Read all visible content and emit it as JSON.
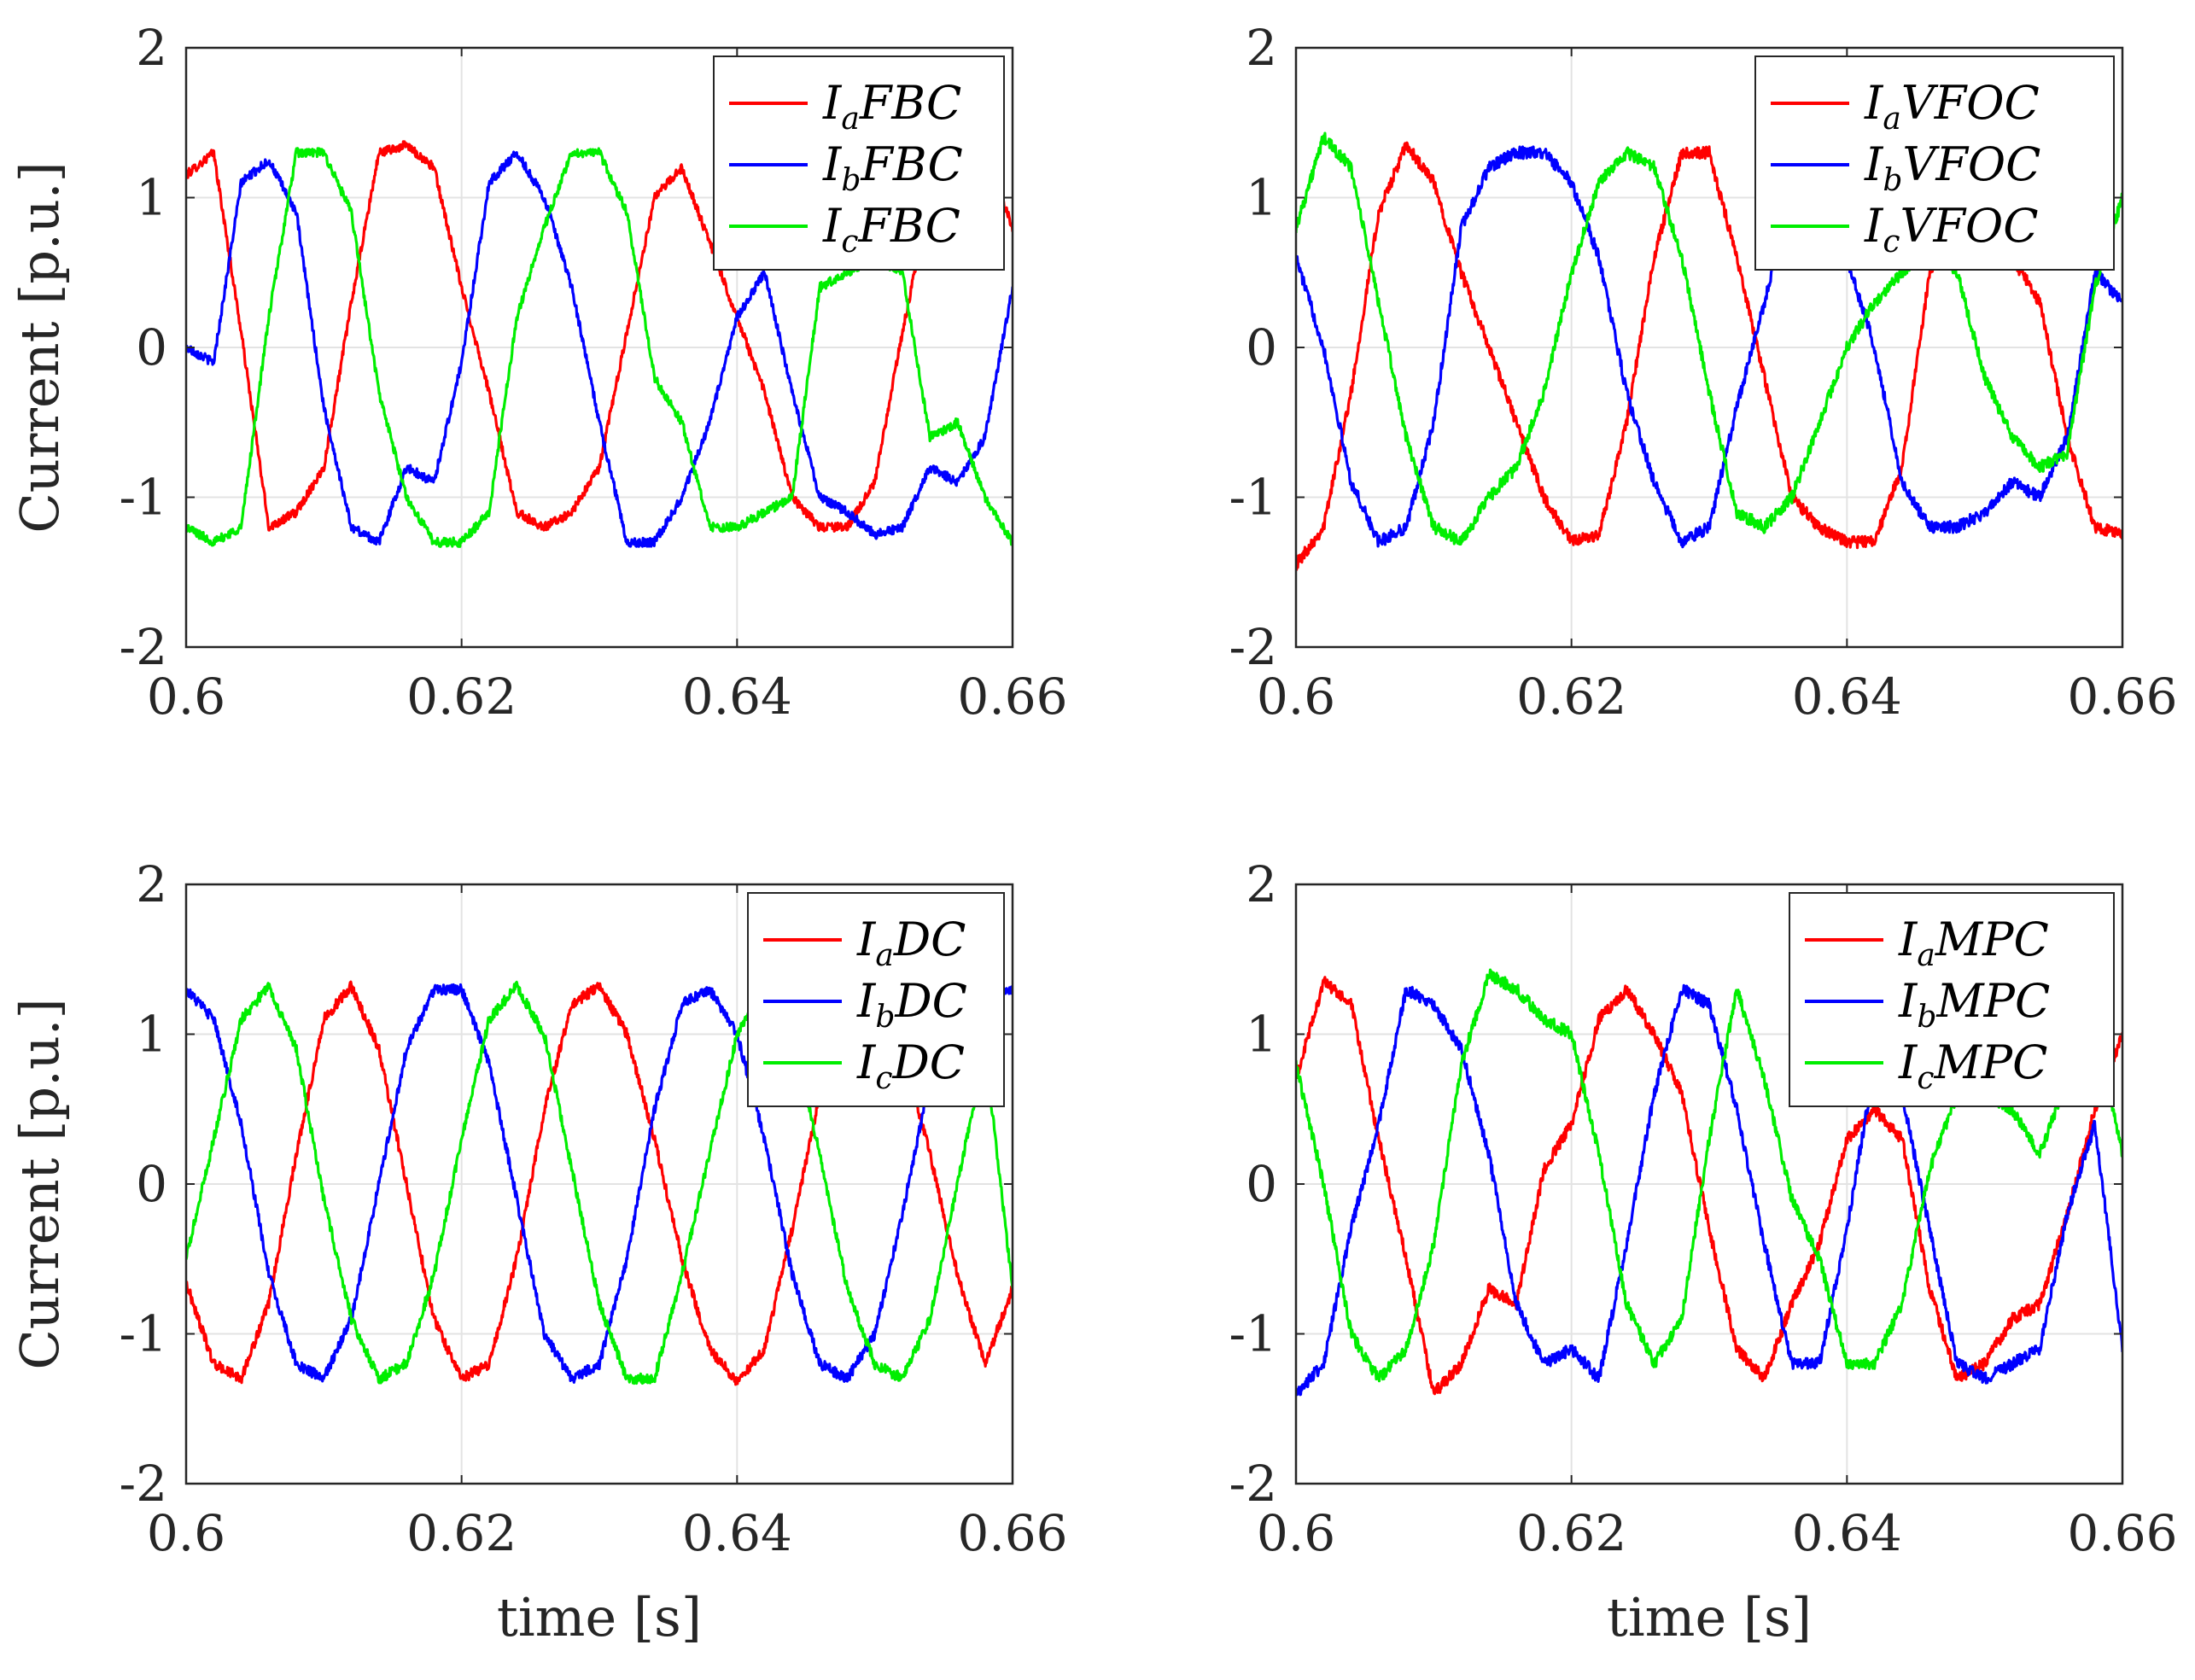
{
  "chart_data": [
    {
      "type": "line",
      "ylabel": "Current [p.u.]",
      "xlabel": "",
      "xlim": [
        0.6,
        0.66
      ],
      "ylim": [
        -2,
        2
      ],
      "xticks": [
        "0.6",
        "0.62",
        "0.64",
        "0.66"
      ],
      "yticks": [
        "2",
        "1",
        "0",
        "-1",
        "-2"
      ],
      "grid": true,
      "legend_position": "top-right",
      "series": [
        {
          "name": "IaFBC",
          "label_main": "I",
          "label_sub": "a",
          "label_rest": "FBC",
          "color": "#ff0000",
          "amplitude": 1.3,
          "phase_deg": 60,
          "noise": 0.03,
          "x": [
            0.6,
            0.602,
            0.604,
            0.606,
            0.608,
            0.61,
            0.612,
            0.614,
            0.616,
            0.618,
            0.62,
            0.622,
            0.624,
            0.626,
            0.628,
            0.63,
            0.632,
            0.634,
            0.636,
            0.638,
            0.64,
            0.642,
            0.644,
            0.646,
            0.648,
            0.65,
            0.652,
            0.654,
            0.656,
            0.658,
            0.66
          ],
          "y": [
            1.15,
            1.3,
            0.1,
            -1.2,
            -1.1,
            -0.8,
            0.3,
            1.3,
            1.35,
            1.2,
            0.4,
            -0.3,
            -1.1,
            -1.2,
            -1.1,
            -0.8,
            0.1,
            1.0,
            1.2,
            0.7,
            0.2,
            -0.3,
            -1.0,
            -1.2,
            -1.2,
            -0.9,
            0.1,
            1.0,
            1.2,
            1.3,
            0.8
          ]
        },
        {
          "name": "IbFBC",
          "label_main": "I",
          "label_sub": "b",
          "label_rest": "FBC",
          "color": "#0000ff",
          "amplitude": 1.3,
          "phase_deg": -60,
          "noise": 0.03,
          "x": [
            0.6,
            0.602,
            0.604,
            0.606,
            0.608,
            0.61,
            0.612,
            0.614,
            0.616,
            0.618,
            0.62,
            0.622,
            0.624,
            0.626,
            0.628,
            0.63,
            0.632,
            0.634,
            0.636,
            0.638,
            0.64,
            0.642,
            0.644,
            0.646,
            0.648,
            0.65,
            0.652,
            0.654,
            0.656,
            0.658,
            0.66
          ],
          "y": [
            0.0,
            -0.1,
            1.1,
            1.25,
            0.9,
            -0.4,
            -1.2,
            -1.3,
            -0.8,
            -0.9,
            -0.1,
            1.1,
            1.3,
            1.0,
            0.4,
            -0.5,
            -1.3,
            -1.3,
            -1.0,
            -0.5,
            0.2,
            0.5,
            -0.3,
            -1.0,
            -1.1,
            -1.25,
            -1.2,
            -0.8,
            -0.9,
            -0.6,
            0.4
          ]
        },
        {
          "name": "IcFBC",
          "label_main": "I",
          "label_sub": "c",
          "label_rest": "FBC",
          "color": "#00ee00",
          "amplitude": 1.3,
          "phase_deg": 180,
          "noise": 0.03,
          "x": [
            0.6,
            0.602,
            0.604,
            0.606,
            0.608,
            0.61,
            0.612,
            0.614,
            0.616,
            0.618,
            0.62,
            0.622,
            0.624,
            0.626,
            0.628,
            0.63,
            0.632,
            0.634,
            0.636,
            0.638,
            0.64,
            0.642,
            0.644,
            0.646,
            0.648,
            0.65,
            0.652,
            0.654,
            0.656,
            0.658,
            0.66
          ],
          "y": [
            -1.2,
            -1.3,
            -1.2,
            0.2,
            1.3,
            1.3,
            0.9,
            -0.3,
            -1.0,
            -1.3,
            -1.3,
            -1.1,
            0.2,
            0.8,
            1.3,
            1.3,
            0.9,
            -0.2,
            -0.5,
            -1.2,
            -1.2,
            -1.1,
            -1.0,
            0.4,
            0.5,
            0.6,
            0.5,
            -0.6,
            -0.5,
            -1.0,
            -1.3
          ]
        }
      ]
    },
    {
      "type": "line",
      "ylabel": "",
      "xlabel": "",
      "xlim": [
        0.6,
        0.66
      ],
      "ylim": [
        -2,
        2
      ],
      "xticks": [
        "0.6",
        "0.62",
        "0.64",
        "0.66"
      ],
      "yticks": [
        "2",
        "1",
        "0",
        "-1",
        "-2"
      ],
      "grid": true,
      "legend_position": "top-right",
      "series": [
        {
          "name": "IaVFOC",
          "label_main": "I",
          "label_sub": "a",
          "label_rest": "VFOC",
          "color": "#ff0000",
          "amplitude": 1.3,
          "phase_deg": 0,
          "noise": 0.04,
          "x": [
            0.6,
            0.602,
            0.604,
            0.606,
            0.608,
            0.61,
            0.612,
            0.614,
            0.616,
            0.618,
            0.62,
            0.622,
            0.624,
            0.626,
            0.628,
            0.63,
            0.632,
            0.634,
            0.636,
            0.638,
            0.64,
            0.642,
            0.644,
            0.646,
            0.648,
            0.65,
            0.652,
            0.654,
            0.656,
            0.658,
            0.66
          ],
          "y": [
            -1.45,
            -1.2,
            -0.3,
            0.9,
            1.35,
            1.1,
            0.5,
            0.0,
            -0.5,
            -1.0,
            -1.3,
            -1.25,
            -0.5,
            0.6,
            1.3,
            1.3,
            0.6,
            -0.2,
            -1.0,
            -1.2,
            -1.3,
            -1.3,
            -0.8,
            0.5,
            0.9,
            0.7,
            0.6,
            0.3,
            -0.6,
            -1.2,
            -1.25
          ]
        },
        {
          "name": "IbVFOC",
          "label_main": "I",
          "label_sub": "b",
          "label_rest": "VFOC",
          "color": "#0000ff",
          "amplitude": 1.3,
          "phase_deg": -120,
          "noise": 0.04,
          "x": [
            0.6,
            0.602,
            0.604,
            0.606,
            0.608,
            0.61,
            0.612,
            0.614,
            0.616,
            0.618,
            0.62,
            0.622,
            0.624,
            0.626,
            0.628,
            0.63,
            0.632,
            0.634,
            0.636,
            0.638,
            0.64,
            0.642,
            0.644,
            0.646,
            0.648,
            0.65,
            0.652,
            0.654,
            0.656,
            0.658,
            0.66
          ],
          "y": [
            0.6,
            0.0,
            -0.9,
            -1.3,
            -1.2,
            -0.5,
            0.8,
            1.2,
            1.3,
            1.3,
            1.1,
            0.6,
            -0.3,
            -0.9,
            -1.3,
            -1.2,
            -0.4,
            0.3,
            1.0,
            1.2,
            0.6,
            0.0,
            -0.9,
            -1.2,
            -1.2,
            -1.1,
            -0.9,
            -1.0,
            -0.6,
            0.5,
            0.3
          ]
        },
        {
          "name": "IcVFOC",
          "label_main": "I",
          "label_sub": "c",
          "label_rest": "VFOC",
          "color": "#00ee00",
          "amplitude": 1.3,
          "phase_deg": 120,
          "noise": 0.04,
          "x": [
            0.6,
            0.602,
            0.604,
            0.606,
            0.608,
            0.61,
            0.612,
            0.614,
            0.616,
            0.618,
            0.62,
            0.622,
            0.624,
            0.626,
            0.628,
            0.63,
            0.632,
            0.634,
            0.636,
            0.638,
            0.64,
            0.642,
            0.644,
            0.646,
            0.648,
            0.65,
            0.652,
            0.654,
            0.656,
            0.658,
            0.66
          ],
          "y": [
            0.8,
            1.4,
            1.2,
            0.3,
            -0.6,
            -1.2,
            -1.3,
            -1.0,
            -0.8,
            -0.3,
            0.5,
            1.1,
            1.3,
            1.2,
            0.6,
            -0.3,
            -1.1,
            -1.2,
            -1.0,
            -0.5,
            0.0,
            0.3,
            0.5,
            0.7,
            0.5,
            -0.2,
            -0.6,
            -0.8,
            -0.7,
            0.4,
            1.0
          ]
        }
      ]
    },
    {
      "type": "line",
      "ylabel": "Current [p.u.]",
      "xlabel": "time [s]",
      "xlim": [
        0.6,
        0.66
      ],
      "ylim": [
        -2,
        2
      ],
      "xticks": [
        "0.6",
        "0.62",
        "0.64",
        "0.66"
      ],
      "yticks": [
        "2",
        "1",
        "0",
        "-1",
        "-2"
      ],
      "grid": true,
      "legend_position": "top-right",
      "series": [
        {
          "name": "IaDC",
          "label_main": "I",
          "label_sub": "a",
          "label_rest": "DC",
          "color": "#ff0000",
          "amplitude": 1.32,
          "phase_deg": -30,
          "noise": 0.035,
          "x": [
            0.6,
            0.602,
            0.604,
            0.606,
            0.608,
            0.61,
            0.612,
            0.614,
            0.616,
            0.618,
            0.62,
            0.622,
            0.624,
            0.626,
            0.628,
            0.63,
            0.632,
            0.634,
            0.636,
            0.638,
            0.64,
            0.642,
            0.644,
            0.646,
            0.648,
            0.65,
            0.652,
            0.654,
            0.656,
            0.658,
            0.66
          ],
          "y": [
            -0.66,
            -1.2,
            -1.3,
            -0.8,
            0.2,
            1.1,
            1.32,
            0.9,
            0.0,
            -0.9,
            -1.3,
            -1.2,
            -0.5,
            0.5,
            1.2,
            1.32,
            1.0,
            0.3,
            -0.5,
            -1.1,
            -1.32,
            -1.1,
            -0.3,
            0.6,
            1.2,
            1.3,
            0.9,
            0.2,
            -0.6,
            -1.2,
            -0.7
          ]
        },
        {
          "name": "IbDC",
          "label_main": "I",
          "label_sub": "b",
          "label_rest": "DC",
          "color": "#0000ff",
          "amplitude": 1.32,
          "phase_deg": -150,
          "noise": 0.035,
          "x": [
            0.6,
            0.602,
            0.604,
            0.606,
            0.608,
            0.61,
            0.612,
            0.614,
            0.616,
            0.618,
            0.62,
            0.622,
            0.624,
            0.626,
            0.628,
            0.63,
            0.632,
            0.634,
            0.636,
            0.638,
            0.64,
            0.642,
            0.644,
            0.646,
            0.648,
            0.65,
            0.652,
            0.654,
            0.656,
            0.658,
            0.66
          ],
          "y": [
            1.3,
            1.1,
            0.4,
            -0.6,
            -1.2,
            -1.3,
            -0.9,
            0.0,
            0.9,
            1.3,
            1.3,
            0.8,
            -0.1,
            -1.0,
            -1.3,
            -1.2,
            -0.5,
            0.5,
            1.2,
            1.3,
            1.0,
            0.3,
            -0.6,
            -1.2,
            -1.3,
            -1.0,
            -0.2,
            0.7,
            1.2,
            1.3,
            1.3
          ]
        },
        {
          "name": "IcDC",
          "label_main": "I",
          "label_sub": "c",
          "label_rest": "DC",
          "color": "#00ee00",
          "amplitude": 1.32,
          "phase_deg": 90,
          "noise": 0.035,
          "x": [
            0.6,
            0.602,
            0.604,
            0.606,
            0.608,
            0.61,
            0.612,
            0.614,
            0.616,
            0.618,
            0.62,
            0.622,
            0.624,
            0.626,
            0.628,
            0.63,
            0.632,
            0.634,
            0.636,
            0.638,
            0.64,
            0.642,
            0.644,
            0.646,
            0.648,
            0.65,
            0.652,
            0.654,
            0.656,
            0.658,
            0.66
          ],
          "y": [
            -0.5,
            0.3,
            1.1,
            1.32,
            0.9,
            -0.1,
            -0.9,
            -1.3,
            -1.2,
            -0.6,
            0.3,
            1.1,
            1.32,
            1.0,
            0.1,
            -0.8,
            -1.3,
            -1.3,
            -0.6,
            0.2,
            1.0,
            1.32,
            1.0,
            0.2,
            -0.7,
            -1.2,
            -1.3,
            -0.9,
            0.0,
            0.9,
            -0.7
          ]
        }
      ]
    },
    {
      "type": "line",
      "ylabel": "",
      "xlabel": "time [s]",
      "xlim": [
        0.6,
        0.66
      ],
      "ylim": [
        -2,
        2
      ],
      "xticks": [
        "0.6",
        "0.62",
        "0.64",
        "0.66"
      ],
      "yticks": [
        "2",
        "1",
        "0",
        "-1",
        "-2"
      ],
      "grid": true,
      "legend_position": "top-right",
      "series": [
        {
          "name": "IaMPC",
          "label_main": "I",
          "label_sub": "a",
          "label_rest": "MPC",
          "color": "#ff0000",
          "amplitude": 1.3,
          "phase_deg": 30,
          "noise": 0.04,
          "x": [
            0.6,
            0.602,
            0.604,
            0.606,
            0.608,
            0.61,
            0.612,
            0.614,
            0.616,
            0.618,
            0.62,
            0.622,
            0.624,
            0.626,
            0.628,
            0.63,
            0.632,
            0.634,
            0.636,
            0.638,
            0.64,
            0.642,
            0.644,
            0.646,
            0.648,
            0.65,
            0.652,
            0.654,
            0.656,
            0.658,
            0.66
          ],
          "y": [
            0.7,
            1.35,
            1.2,
            0.3,
            -0.5,
            -1.4,
            -1.2,
            -0.7,
            -0.8,
            0.1,
            0.4,
            1.1,
            1.3,
            1.0,
            0.6,
            -0.3,
            -1.1,
            -1.3,
            -0.8,
            -0.4,
            0.3,
            0.5,
            0.3,
            -0.7,
            -1.3,
            -1.2,
            -0.9,
            -0.8,
            -0.2,
            0.5,
            1.0
          ]
        },
        {
          "name": "IbMPC",
          "label_main": "I",
          "label_sub": "b",
          "label_rest": "MPC",
          "color": "#0000ff",
          "amplitude": 1.3,
          "phase_deg": -90,
          "noise": 0.04,
          "x": [
            0.6,
            0.602,
            0.604,
            0.606,
            0.608,
            0.61,
            0.612,
            0.614,
            0.616,
            0.618,
            0.62,
            0.622,
            0.624,
            0.626,
            0.628,
            0.63,
            0.632,
            0.634,
            0.636,
            0.638,
            0.64,
            0.642,
            0.644,
            0.646,
            0.648,
            0.65,
            0.652,
            0.654,
            0.656,
            0.658,
            0.66
          ],
          "y": [
            -1.4,
            -1.2,
            -0.3,
            0.4,
            1.3,
            1.2,
            0.9,
            0.2,
            -0.8,
            -1.2,
            -1.1,
            -1.3,
            -0.4,
            0.6,
            1.3,
            1.2,
            0.5,
            -0.4,
            -1.2,
            -1.2,
            -0.3,
            0.8,
            0.6,
            -0.3,
            -1.2,
            -1.3,
            -1.2,
            -1.1,
            -0.2,
            0.4,
            -1.1
          ]
        },
        {
          "name": "IcMPC",
          "label_main": "I",
          "label_sub": "c",
          "label_rest": "MPC",
          "color": "#00ee00",
          "amplitude": 1.3,
          "phase_deg": 150,
          "noise": 0.04,
          "x": [
            0.6,
            0.602,
            0.604,
            0.606,
            0.608,
            0.61,
            0.612,
            0.614,
            0.616,
            0.618,
            0.62,
            0.622,
            0.624,
            0.626,
            0.628,
            0.63,
            0.632,
            0.634,
            0.636,
            0.638,
            0.64,
            0.642,
            0.644,
            0.646,
            0.648,
            0.65,
            0.652,
            0.654,
            0.656,
            0.658,
            0.66
          ],
          "y": [
            0.8,
            0.0,
            -1.0,
            -1.3,
            -1.1,
            -0.4,
            0.8,
            1.4,
            1.3,
            1.1,
            1.0,
            0.2,
            -0.8,
            -1.2,
            -0.9,
            0.3,
            1.3,
            0.7,
            -0.1,
            -0.5,
            -1.2,
            -1.2,
            -0.8,
            0.1,
            0.6,
            0.6,
            0.5,
            0.2,
            0.7,
            1.1,
            0.2
          ]
        }
      ]
    }
  ]
}
